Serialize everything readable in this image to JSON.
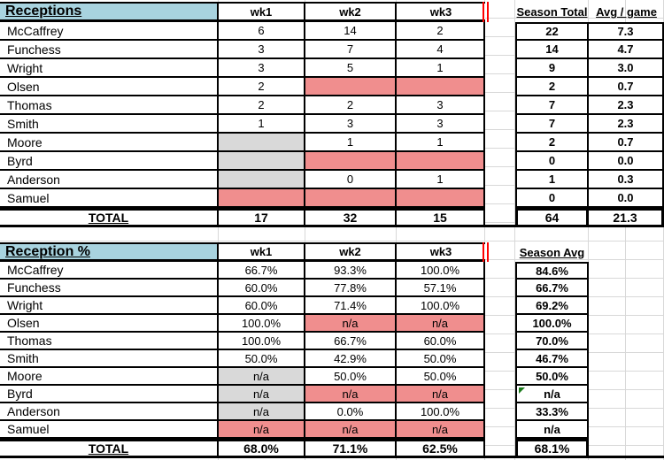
{
  "colors": {
    "title_fill": "#A8D3DF",
    "red_fill": "#F08E8E",
    "gray_fill": "#D9D9D9",
    "border": "#000000",
    "gridline": "#D8D8D8",
    "page_break_red": "#FF0000",
    "error_flag_green": "#1C7C1C"
  },
  "table1": {
    "title": "Receptions",
    "week_headers": [
      "wk1",
      "wk2",
      "wk3"
    ],
    "summary_headers": [
      "Season Total",
      "Avg / game"
    ],
    "rows": [
      {
        "name": "McCaffrey",
        "weeks": [
          {
            "v": "6"
          },
          {
            "v": "14"
          },
          {
            "v": "2"
          }
        ],
        "summary": [
          {
            "v": "22"
          },
          {
            "v": "7.3"
          }
        ]
      },
      {
        "name": "Funchess",
        "weeks": [
          {
            "v": "3"
          },
          {
            "v": "7"
          },
          {
            "v": "4"
          }
        ],
        "summary": [
          {
            "v": "14"
          },
          {
            "v": "4.7"
          }
        ]
      },
      {
        "name": "Wright",
        "weeks": [
          {
            "v": "3"
          },
          {
            "v": "5"
          },
          {
            "v": "1"
          }
        ],
        "summary": [
          {
            "v": "9"
          },
          {
            "v": "3.0"
          }
        ]
      },
      {
        "name": "Olsen",
        "weeks": [
          {
            "v": "2"
          },
          {
            "v": "",
            "fill": "red"
          },
          {
            "v": "",
            "fill": "red"
          }
        ],
        "summary": [
          {
            "v": "2"
          },
          {
            "v": "0.7"
          }
        ]
      },
      {
        "name": "Thomas",
        "weeks": [
          {
            "v": "2"
          },
          {
            "v": "2"
          },
          {
            "v": "3"
          }
        ],
        "summary": [
          {
            "v": "7"
          },
          {
            "v": "2.3"
          }
        ]
      },
      {
        "name": "Smith",
        "weeks": [
          {
            "v": "1"
          },
          {
            "v": "3"
          },
          {
            "v": "3"
          }
        ],
        "summary": [
          {
            "v": "7"
          },
          {
            "v": "2.3"
          }
        ]
      },
      {
        "name": "Moore",
        "weeks": [
          {
            "v": "",
            "fill": "gray"
          },
          {
            "v": "1"
          },
          {
            "v": "1"
          }
        ],
        "summary": [
          {
            "v": "2"
          },
          {
            "v": "0.7"
          }
        ]
      },
      {
        "name": "Byrd",
        "weeks": [
          {
            "v": "",
            "fill": "gray"
          },
          {
            "v": "",
            "fill": "red"
          },
          {
            "v": "",
            "fill": "red"
          }
        ],
        "summary": [
          {
            "v": "0"
          },
          {
            "v": "0.0"
          }
        ]
      },
      {
        "name": "Anderson",
        "weeks": [
          {
            "v": "",
            "fill": "gray"
          },
          {
            "v": "0"
          },
          {
            "v": "1"
          }
        ],
        "summary": [
          {
            "v": "1"
          },
          {
            "v": "0.3"
          }
        ]
      },
      {
        "name": "Samuel",
        "weeks": [
          {
            "v": "",
            "fill": "red"
          },
          {
            "v": "",
            "fill": "red"
          },
          {
            "v": "",
            "fill": "red"
          }
        ],
        "summary": [
          {
            "v": "0"
          },
          {
            "v": "0.0"
          }
        ]
      }
    ],
    "total": {
      "label": "TOTAL",
      "weeks": [
        "17",
        "32",
        "15"
      ],
      "summary": [
        "64",
        "21.3"
      ]
    }
  },
  "table2": {
    "title": "Reception %",
    "week_headers": [
      "wk1",
      "wk2",
      "wk3"
    ],
    "summary_headers": [
      "Season Avg"
    ],
    "rows": [
      {
        "name": "McCaffrey",
        "weeks": [
          {
            "v": "66.7%"
          },
          {
            "v": "93.3%"
          },
          {
            "v": "100.0%"
          }
        ],
        "summary": [
          {
            "v": "84.6%"
          }
        ]
      },
      {
        "name": "Funchess",
        "weeks": [
          {
            "v": "60.0%"
          },
          {
            "v": "77.8%"
          },
          {
            "v": "57.1%"
          }
        ],
        "summary": [
          {
            "v": "66.7%"
          }
        ]
      },
      {
        "name": "Wright",
        "weeks": [
          {
            "v": "60.0%"
          },
          {
            "v": "71.4%"
          },
          {
            "v": "100.0%"
          }
        ],
        "summary": [
          {
            "v": "69.2%"
          }
        ]
      },
      {
        "name": "Olsen",
        "weeks": [
          {
            "v": "100.0%"
          },
          {
            "v": "n/a",
            "fill": "red"
          },
          {
            "v": "n/a",
            "fill": "red"
          }
        ],
        "summary": [
          {
            "v": "100.0%"
          }
        ]
      },
      {
        "name": "Thomas",
        "weeks": [
          {
            "v": "100.0%"
          },
          {
            "v": "66.7%"
          },
          {
            "v": "60.0%"
          }
        ],
        "summary": [
          {
            "v": "70.0%"
          }
        ]
      },
      {
        "name": "Smith",
        "weeks": [
          {
            "v": "50.0%"
          },
          {
            "v": "42.9%"
          },
          {
            "v": "50.0%"
          }
        ],
        "summary": [
          {
            "v": "46.7%"
          }
        ]
      },
      {
        "name": "Moore",
        "weeks": [
          {
            "v": "n/a",
            "fill": "gray"
          },
          {
            "v": "50.0%"
          },
          {
            "v": "50.0%"
          }
        ],
        "summary": [
          {
            "v": "50.0%"
          }
        ]
      },
      {
        "name": "Byrd",
        "weeks": [
          {
            "v": "n/a",
            "fill": "gray"
          },
          {
            "v": "n/a",
            "fill": "red"
          },
          {
            "v": "n/a",
            "fill": "red"
          }
        ],
        "summary": [
          {
            "v": "n/a",
            "error_marker": true
          }
        ]
      },
      {
        "name": "Anderson",
        "weeks": [
          {
            "v": "n/a",
            "fill": "gray"
          },
          {
            "v": "0.0%"
          },
          {
            "v": "100.0%"
          }
        ],
        "summary": [
          {
            "v": "33.3%"
          }
        ]
      },
      {
        "name": "Samuel",
        "weeks": [
          {
            "v": "n/a",
            "fill": "red"
          },
          {
            "v": "n/a",
            "fill": "red"
          },
          {
            "v": "n/a",
            "fill": "red"
          }
        ],
        "summary": [
          {
            "v": "n/a"
          }
        ]
      }
    ],
    "total": {
      "label": "TOTAL",
      "weeks": [
        "68.0%",
        "71.1%",
        "62.5%"
      ],
      "summary": [
        "68.1%"
      ]
    }
  }
}
